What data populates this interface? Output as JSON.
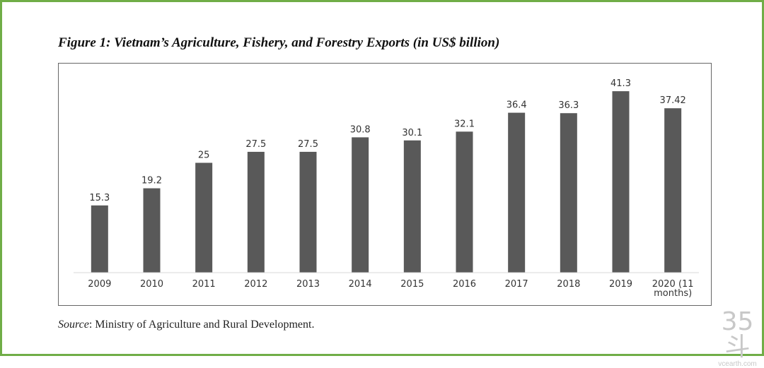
{
  "title": "Figure 1: Vietnam’s Agriculture, Fishery, and Forestry Exports (in US$ billion)",
  "source_label": "Source",
  "source_text": ": Ministry of Agriculture and Rural Development.",
  "watermark": {
    "logo": "35斗",
    "site": "vcearth.com"
  },
  "colors": {
    "bar": "#595959",
    "border": "#70ad47"
  },
  "chart_data": {
    "type": "bar",
    "title": "Figure 1: Vietnam’s Agriculture, Fishery, and Forestry Exports (in US$ billion)",
    "xlabel": "",
    "ylabel": "",
    "categories": [
      "2009",
      "2010",
      "2011",
      "2012",
      "2013",
      "2014",
      "2015",
      "2016",
      "2017",
      "2018",
      "2019",
      "2020 (11 months)"
    ],
    "category_lines": [
      [
        "2009"
      ],
      [
        "2010"
      ],
      [
        "2011"
      ],
      [
        "2012"
      ],
      [
        "2013"
      ],
      [
        "2014"
      ],
      [
        "2015"
      ],
      [
        "2016"
      ],
      [
        "2017"
      ],
      [
        "2018"
      ],
      [
        "2019"
      ],
      [
        "2020 (11",
        "months)"
      ]
    ],
    "values": [
      15.3,
      19.2,
      25,
      27.5,
      27.5,
      30.8,
      30.1,
      32.1,
      36.4,
      36.3,
      41.3,
      37.42
    ],
    "labels": [
      "15.3",
      "19.2",
      "25",
      "27.5",
      "27.5",
      "30.8",
      "30.1",
      "32.1",
      "36.4",
      "36.3",
      "41.3",
      "37.42"
    ],
    "ylim": [
      0,
      46
    ],
    "grid": false,
    "legend": "none"
  }
}
